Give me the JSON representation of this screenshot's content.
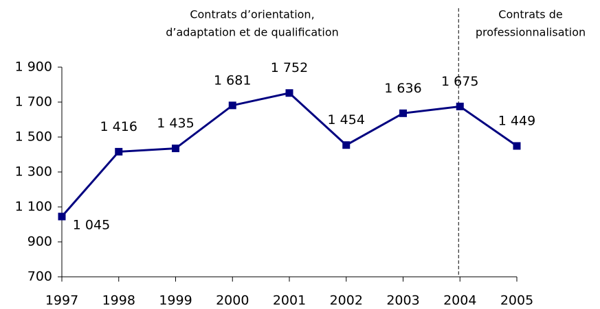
{
  "chart_data": {
    "type": "line",
    "categories": [
      "1997",
      "1998",
      "1999",
      "2000",
      "2001",
      "2002",
      "2003",
      "2004",
      "2005"
    ],
    "series": [
      {
        "name": "Contrats",
        "color": "#000080",
        "values": [
          1045,
          1416,
          1435,
          1681,
          1752,
          1454,
          1636,
          1675,
          1449
        ],
        "value_labels": [
          "1 045",
          "1 416",
          "1 435",
          "1 681",
          "1 752",
          "1 454",
          "1 636",
          "1 675",
          "1 449"
        ]
      }
    ],
    "ylim": [
      700,
      1900
    ],
    "yticks": [
      700,
      900,
      {
        "value": 1100,
        "label": "1 100"
      },
      {
        "value": 1300,
        "label": "1 300"
      },
      {
        "value": 1500,
        "label": "1 500"
      },
      {
        "value": 1700,
        "label": "1 700"
      },
      {
        "value": 1900,
        "label": "1 900"
      }
    ],
    "grid": false,
    "annotations": [
      {
        "text": [
          "Contrats d’orientation,",
          "d’adaptation et de qualification"
        ]
      },
      {
        "text": [
          "Contrats de",
          "professionnalisation"
        ]
      }
    ]
  }
}
